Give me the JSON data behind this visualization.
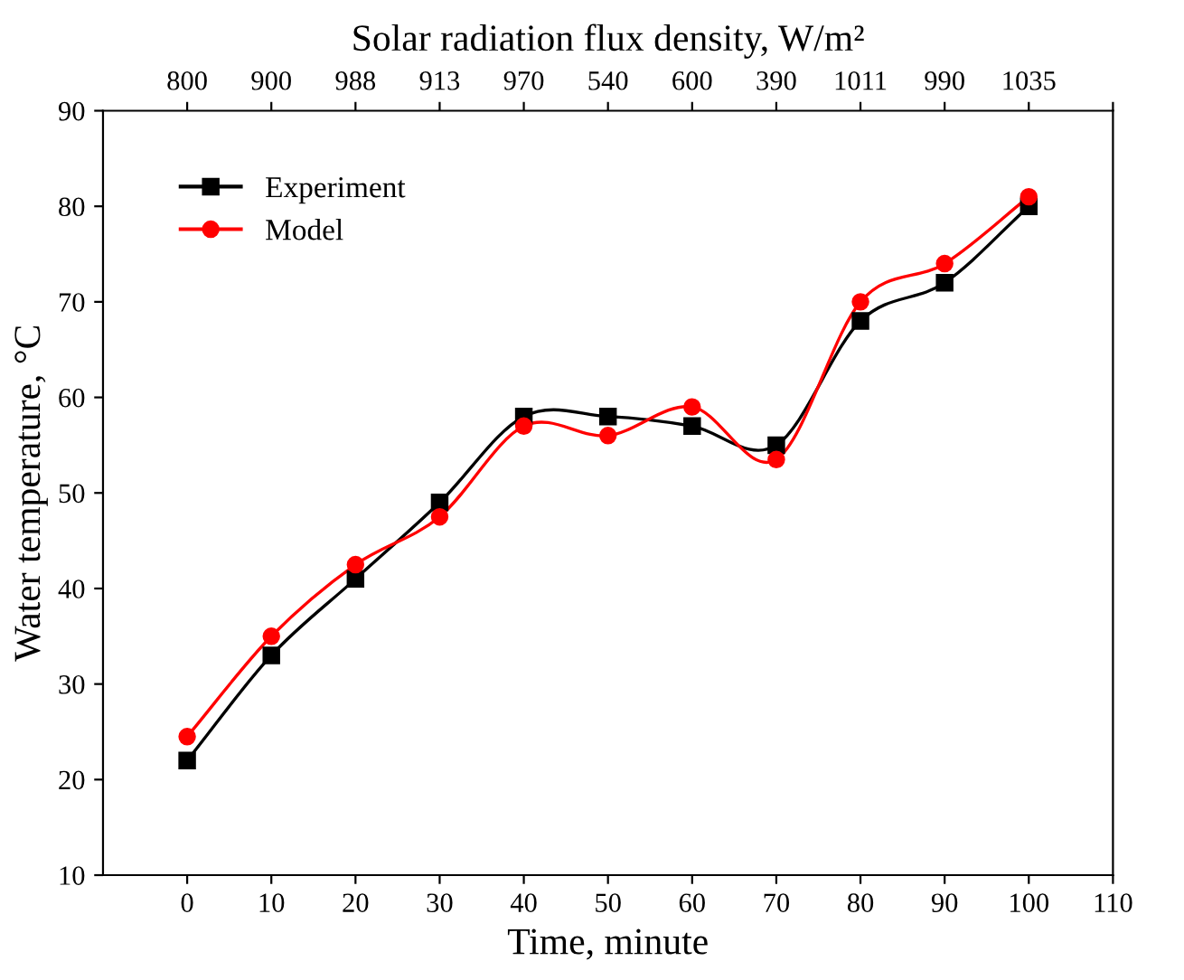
{
  "chart_data": {
    "type": "line",
    "xlabel": "Time, minute",
    "ylabel": "Water temperature, °C",
    "x2label": "Solar radiation flux density, W/m²",
    "x": [
      0,
      10,
      20,
      30,
      40,
      50,
      60,
      70,
      80,
      90,
      100
    ],
    "series": [
      {
        "name": "Experiment",
        "color": "#000000",
        "marker": "square",
        "values": [
          22,
          33,
          41,
          49,
          58,
          58,
          57,
          55,
          68,
          72,
          80
        ]
      },
      {
        "name": "Model",
        "color": "#ff0000",
        "marker": "circle",
        "values": [
          24.5,
          35,
          42.5,
          47.5,
          57,
          56,
          59,
          53.5,
          70,
          74,
          81
        ]
      }
    ],
    "xlim": [
      -10,
      110
    ],
    "xticks": [
      0,
      10,
      20,
      30,
      40,
      50,
      60,
      70,
      80,
      90,
      100,
      110
    ],
    "ylim": [
      10,
      90
    ],
    "yticks": [
      10,
      20,
      30,
      40,
      50,
      60,
      70,
      80,
      90
    ],
    "annotations": [
      "800",
      "900",
      "988",
      "913",
      "970",
      "540",
      "600",
      "390",
      "1011",
      "990",
      "1035"
    ],
    "legend": "top left",
    "grid": false,
    "line_style": "solid"
  }
}
